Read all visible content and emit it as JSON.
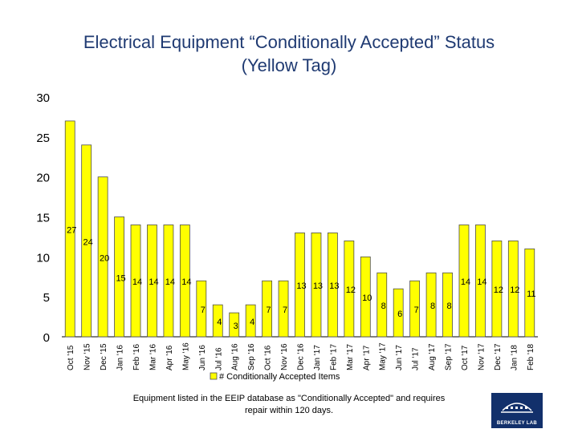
{
  "title": "Electrical Equipment “Conditionally Accepted” Status\n(Yellow Tag)",
  "footnote": "Equipment listed in the EEIP database as \"Conditionally Accepted\" and requires\nrepair within 120 days.",
  "logo_text": "BERKELEY LAB",
  "chart_data": {
    "type": "bar",
    "categories": [
      "Oct '15",
      "Nov '15",
      "Dec '15",
      "Jan '16",
      "Feb '16",
      "Mar '16",
      "Apr '16",
      "May '16",
      "Jun '16",
      "Jul '16",
      "Aug '16",
      "Sep '16",
      "Oct '16",
      "Nov '16",
      "Dec '16",
      "Jan '17",
      "Feb '17",
      "Mar '17",
      "Apr '17",
      "May '17",
      "Jun '17",
      "Jul '17",
      "Aug '17",
      "Sep '17",
      "Oct '17",
      "Nov '17",
      "Dec '17",
      "Jan '18",
      "Feb '18"
    ],
    "series": [
      {
        "name": "# Conditionally Accepted Items",
        "values": [
          27,
          24,
          20,
          15,
          14,
          14,
          14,
          14,
          7,
          4,
          3,
          4,
          7,
          7,
          13,
          13,
          13,
          12,
          10,
          8,
          6,
          7,
          8,
          8,
          14,
          14,
          12,
          12,
          11
        ]
      }
    ],
    "data_labels": [
      "27",
      "24",
      "20",
      "15",
      "14",
      "14",
      "14",
      "14",
      "7",
      "4",
      "3",
      "4",
      "7",
      "7",
      "13",
      "13",
      "13",
      "12",
      "10",
      "8",
      "6",
      "7",
      "8",
      "8",
      "14",
      "14",
      "12",
      "12",
      "11"
    ],
    "ylim": [
      0,
      30
    ],
    "yticks": [
      "0",
      "5",
      "10",
      "15",
      "20",
      "25",
      "30"
    ],
    "grid": false,
    "legend": "bottom",
    "colors": {
      "bar_fill": "#ffff00",
      "bar_stroke": "#4d4d4d",
      "title": "#1f3a72",
      "logo_bg": "#12306b"
    }
  }
}
